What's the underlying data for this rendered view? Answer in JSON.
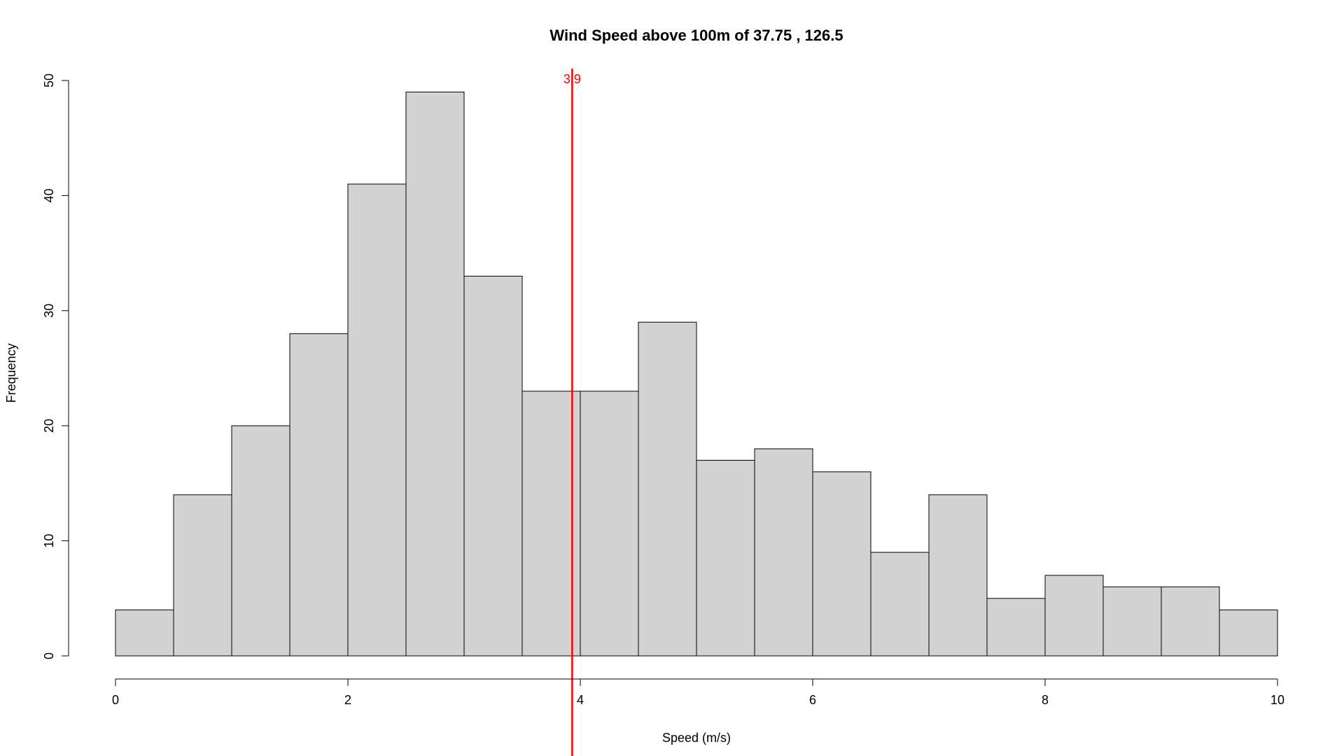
{
  "colors": {
    "bar_fill": "#d3d3d3",
    "bar_stroke": "#000000",
    "reference_line": "#ff0000"
  },
  "chart_data": {
    "type": "bar",
    "title": "Wind Speed above 100m of 37.75 , 126.5",
    "xlabel": "Speed (m/s)",
    "ylabel": "Frequency",
    "bins": [
      [
        0,
        0.5
      ],
      [
        0.5,
        1
      ],
      [
        1,
        1.5
      ],
      [
        1.5,
        2
      ],
      [
        2,
        2.5
      ],
      [
        2.5,
        3
      ],
      [
        3,
        3.5
      ],
      [
        3.5,
        4
      ],
      [
        4,
        4.5
      ],
      [
        4.5,
        5
      ],
      [
        5,
        5.5
      ],
      [
        5.5,
        6
      ],
      [
        6,
        6.5
      ],
      [
        6.5,
        7
      ],
      [
        7,
        7.5
      ],
      [
        7.5,
        8
      ],
      [
        8,
        8.5
      ],
      [
        8.5,
        9
      ],
      [
        9,
        9.5
      ],
      [
        9.5,
        10
      ]
    ],
    "values": [
      4,
      14,
      20,
      28,
      41,
      49,
      33,
      23,
      23,
      29,
      17,
      18,
      16,
      9,
      14,
      5,
      7,
      6,
      6,
      4
    ],
    "xlim": [
      0,
      10
    ],
    "ylim": [
      0,
      50
    ],
    "xticks": [
      0,
      2,
      4,
      6,
      8,
      10
    ],
    "yticks": [
      0,
      10,
      20,
      30,
      40,
      50
    ],
    "grid": false,
    "reference_line": {
      "x": 3.93,
      "label": "3.9"
    }
  }
}
